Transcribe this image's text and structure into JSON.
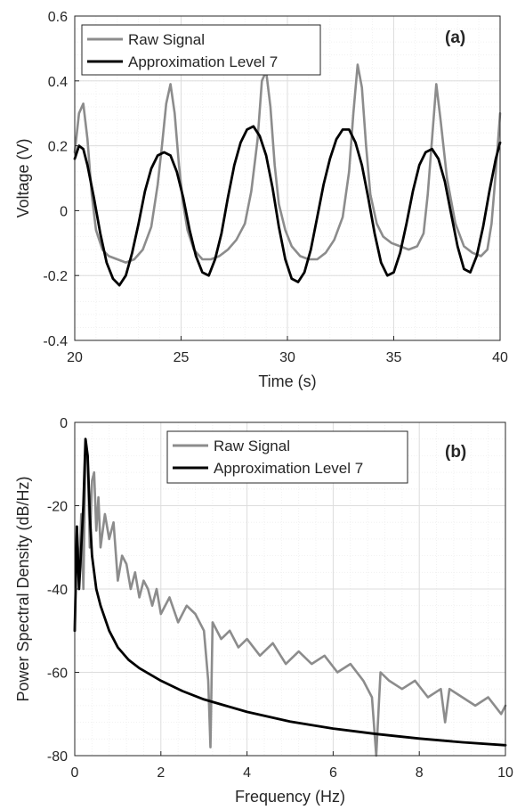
{
  "chart_data": [
    {
      "type": "line",
      "panel_label": "(a)",
      "xlabel": "Time (s)",
      "ylabel": "Voltage (V)",
      "xlim": [
        20,
        40
      ],
      "ylim": [
        -0.4,
        0.6
      ],
      "xticks": [
        20,
        25,
        30,
        35,
        40
      ],
      "xtick_labels": [
        "20",
        "25",
        "30",
        "35",
        "40"
      ],
      "yticks": [
        -0.4,
        -0.2,
        0,
        0.2,
        0.4,
        0.6
      ],
      "ytick_labels": [
        "-0.4",
        "-0.2",
        "0",
        "0.2",
        "0.4",
        "0.6"
      ],
      "grid": true,
      "minor_grid": true,
      "legend_position": "top-left",
      "series": [
        {
          "name": "Raw Signal",
          "color": "#8c8c8c",
          "x": [
            20.0,
            20.2,
            20.4,
            20.6,
            20.8,
            21.0,
            21.3,
            21.6,
            22.0,
            22.4,
            22.8,
            23.2,
            23.6,
            23.9,
            24.1,
            24.3,
            24.5,
            24.7,
            24.9,
            25.1,
            25.3,
            25.6,
            26.0,
            26.4,
            26.8,
            27.2,
            27.6,
            28.0,
            28.3,
            28.6,
            28.8,
            29.0,
            29.2,
            29.4,
            29.6,
            29.9,
            30.2,
            30.6,
            31.0,
            31.4,
            31.8,
            32.2,
            32.6,
            32.9,
            33.1,
            33.3,
            33.5,
            33.7,
            33.9,
            34.2,
            34.5,
            34.9,
            35.3,
            35.7,
            36.1,
            36.4,
            36.6,
            36.8,
            37.0,
            37.2,
            37.5,
            37.9,
            38.3,
            38.7,
            39.1,
            39.4,
            39.6,
            39.8,
            40.0
          ],
          "values": [
            0.18,
            0.3,
            0.33,
            0.22,
            0.05,
            -0.06,
            -0.12,
            -0.14,
            -0.15,
            -0.16,
            -0.15,
            -0.12,
            -0.05,
            0.08,
            0.2,
            0.33,
            0.39,
            0.3,
            0.14,
            0.02,
            -0.06,
            -0.12,
            -0.15,
            -0.15,
            -0.14,
            -0.12,
            -0.09,
            -0.04,
            0.06,
            0.22,
            0.4,
            0.43,
            0.32,
            0.14,
            0.02,
            -0.06,
            -0.11,
            -0.14,
            -0.15,
            -0.15,
            -0.13,
            -0.09,
            -0.02,
            0.12,
            0.3,
            0.45,
            0.38,
            0.2,
            0.05,
            -0.04,
            -0.08,
            -0.1,
            -0.11,
            -0.12,
            -0.11,
            -0.07,
            0.05,
            0.22,
            0.39,
            0.28,
            0.1,
            -0.04,
            -0.11,
            -0.13,
            -0.14,
            -0.12,
            -0.04,
            0.12,
            0.3
          ]
        },
        {
          "name": "Approximation Level 7",
          "color": "#000000",
          "x": [
            20.0,
            20.2,
            20.4,
            20.6,
            20.9,
            21.2,
            21.5,
            21.8,
            22.1,
            22.4,
            22.7,
            23.0,
            23.3,
            23.6,
            23.9,
            24.2,
            24.5,
            24.8,
            25.1,
            25.4,
            25.7,
            26.0,
            26.3,
            26.6,
            26.9,
            27.2,
            27.5,
            27.8,
            28.1,
            28.4,
            28.7,
            29.0,
            29.3,
            29.6,
            29.9,
            30.2,
            30.5,
            30.8,
            31.1,
            31.4,
            31.7,
            32.0,
            32.3,
            32.6,
            32.9,
            33.2,
            33.5,
            33.8,
            34.1,
            34.4,
            34.7,
            35.0,
            35.3,
            35.6,
            35.9,
            36.2,
            36.5,
            36.8,
            37.1,
            37.4,
            37.7,
            38.0,
            38.3,
            38.6,
            38.9,
            39.2,
            39.5,
            39.8,
            40.0
          ],
          "values": [
            0.16,
            0.2,
            0.19,
            0.14,
            0.04,
            -0.07,
            -0.16,
            -0.21,
            -0.23,
            -0.2,
            -0.13,
            -0.04,
            0.06,
            0.13,
            0.17,
            0.18,
            0.17,
            0.12,
            0.04,
            -0.06,
            -0.14,
            -0.19,
            -0.2,
            -0.15,
            -0.07,
            0.04,
            0.14,
            0.21,
            0.25,
            0.26,
            0.23,
            0.17,
            0.07,
            -0.05,
            -0.15,
            -0.21,
            -0.22,
            -0.19,
            -0.12,
            -0.02,
            0.08,
            0.16,
            0.22,
            0.25,
            0.25,
            0.21,
            0.14,
            0.04,
            -0.07,
            -0.16,
            -0.2,
            -0.19,
            -0.13,
            -0.04,
            0.06,
            0.14,
            0.18,
            0.19,
            0.16,
            0.09,
            -0.01,
            -0.11,
            -0.18,
            -0.19,
            -0.14,
            -0.05,
            0.06,
            0.16,
            0.21
          ]
        }
      ]
    },
    {
      "type": "line",
      "panel_label": "(b)",
      "xlabel": "Frequency (Hz)",
      "ylabel": "Power Spectral Density (dB/Hz)",
      "xlim": [
        0,
        10
      ],
      "ylim": [
        -80,
        0
      ],
      "xticks": [
        0,
        2,
        4,
        6,
        8,
        10
      ],
      "xtick_labels": [
        "0",
        "2",
        "4",
        "6",
        "8",
        "10"
      ],
      "yticks": [
        -80,
        -60,
        -40,
        -20,
        0
      ],
      "ytick_labels": [
        "-80",
        "-60",
        "-40",
        "-20",
        "0"
      ],
      "grid": true,
      "minor_grid": true,
      "legend_position": "top-center",
      "series": [
        {
          "name": "Raw Signal",
          "color": "#8c8c8c",
          "x": [
            0.0,
            0.05,
            0.1,
            0.15,
            0.2,
            0.25,
            0.3,
            0.35,
            0.4,
            0.45,
            0.5,
            0.55,
            0.6,
            0.7,
            0.8,
            0.9,
            1.0,
            1.1,
            1.2,
            1.3,
            1.4,
            1.5,
            1.6,
            1.7,
            1.8,
            1.9,
            2.0,
            2.2,
            2.4,
            2.6,
            2.8,
            3.0,
            3.1,
            3.15,
            3.2,
            3.4,
            3.6,
            3.8,
            4.0,
            4.3,
            4.6,
            4.9,
            5.2,
            5.5,
            5.8,
            6.1,
            6.4,
            6.7,
            6.9,
            7.0,
            7.1,
            7.3,
            7.6,
            7.9,
            8.2,
            8.5,
            8.6,
            8.7,
            9.0,
            9.3,
            9.6,
            9.9,
            10.0
          ],
          "values": [
            -50,
            -25,
            -38,
            -22,
            -40,
            -6,
            -8,
            -30,
            -14,
            -12,
            -26,
            -18,
            -30,
            -22,
            -28,
            -24,
            -38,
            -32,
            -34,
            -40,
            -36,
            -42,
            -38,
            -40,
            -44,
            -40,
            -46,
            -42,
            -48,
            -44,
            -46,
            -50,
            -62,
            -78,
            -48,
            -52,
            -50,
            -54,
            -52,
            -56,
            -53,
            -58,
            -55,
            -58,
            -56,
            -60,
            -58,
            -62,
            -66,
            -80,
            -60,
            -62,
            -64,
            -62,
            -66,
            -64,
            -72,
            -64,
            -66,
            -68,
            -66,
            -70,
            -68
          ]
        },
        {
          "name": "Approximation Level 7",
          "color": "#000000",
          "x": [
            0.0,
            0.05,
            0.1,
            0.15,
            0.2,
            0.25,
            0.3,
            0.35,
            0.4,
            0.5,
            0.6,
            0.8,
            1.0,
            1.25,
            1.5,
            2.0,
            2.5,
            3.0,
            4.0,
            5.0,
            6.0,
            7.0,
            8.0,
            9.0,
            10.0
          ],
          "values": [
            -50,
            -25,
            -40,
            -30,
            -20,
            -4,
            -8,
            -22,
            -32,
            -40,
            -44,
            -50,
            -54,
            -57,
            -59,
            -62,
            -64.5,
            -66.5,
            -69.5,
            -71.8,
            -73.5,
            -74.8,
            -75.9,
            -76.8,
            -77.5
          ]
        }
      ]
    }
  ]
}
